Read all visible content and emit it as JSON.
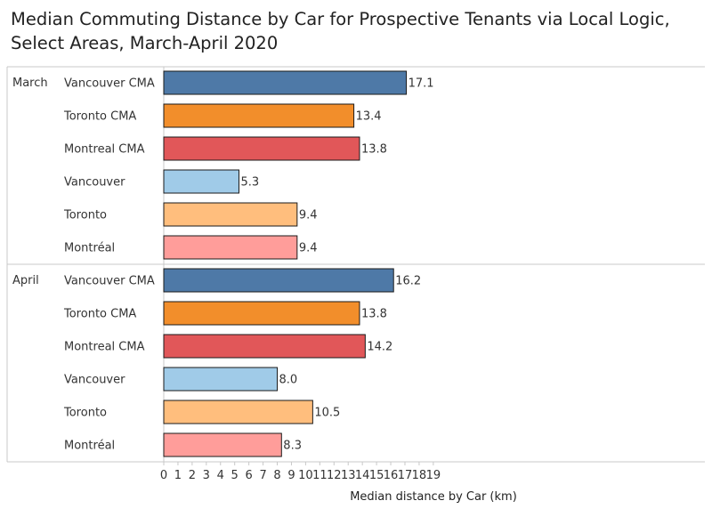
{
  "chart_data": {
    "type": "bar",
    "orientation": "horizontal",
    "title": "Median Commuting Distance by Car for Prospective Tenants via Local Logic, Select Areas, March-April 2020",
    "xlabel": "Median distance by Car (km)",
    "ylabel": "",
    "xlim": [
      0,
      19
    ],
    "xticks": [
      "0",
      "1",
      "2",
      "3",
      "4",
      "5",
      "6",
      "7",
      "8",
      "9",
      "10",
      "11",
      "12",
      "13",
      "14",
      "15",
      "16",
      "17",
      "18",
      "19"
    ],
    "grid": false,
    "legend": "none",
    "groups": [
      {
        "name": "March",
        "bars": [
          {
            "label": "Vancouver CMA",
            "value": 17.1,
            "value_label": "17.1",
            "color": "#4e79a7"
          },
          {
            "label": "Toronto CMA",
            "value": 13.4,
            "value_label": "13.4",
            "color": "#f28e2b"
          },
          {
            "label": "Montreal CMA",
            "value": 13.8,
            "value_label": "13.8",
            "color": "#e15759"
          },
          {
            "label": "Vancouver",
            "value": 5.3,
            "value_label": "5.3",
            "color": "#a0cbe8"
          },
          {
            "label": "Toronto",
            "value": 9.4,
            "value_label": "9.4",
            "color": "#ffbe7d"
          },
          {
            "label": "Montréal",
            "value": 9.4,
            "value_label": "9.4",
            "color": "#ff9d9a"
          }
        ]
      },
      {
        "name": "April",
        "bars": [
          {
            "label": "Vancouver CMA",
            "value": 16.2,
            "value_label": "16.2",
            "color": "#4e79a7"
          },
          {
            "label": "Toronto CMA",
            "value": 13.8,
            "value_label": "13.8",
            "color": "#f28e2b"
          },
          {
            "label": "Montreal CMA",
            "value": 14.2,
            "value_label": "14.2",
            "color": "#e15759"
          },
          {
            "label": "Vancouver",
            "value": 8.0,
            "value_label": "8.0",
            "color": "#a0cbe8"
          },
          {
            "label": "Toronto",
            "value": 10.5,
            "value_label": "10.5",
            "color": "#ffbe7d"
          },
          {
            "label": "Montréal",
            "value": 8.3,
            "value_label": "8.3",
            "color": "#ff9d9a"
          }
        ]
      }
    ]
  }
}
